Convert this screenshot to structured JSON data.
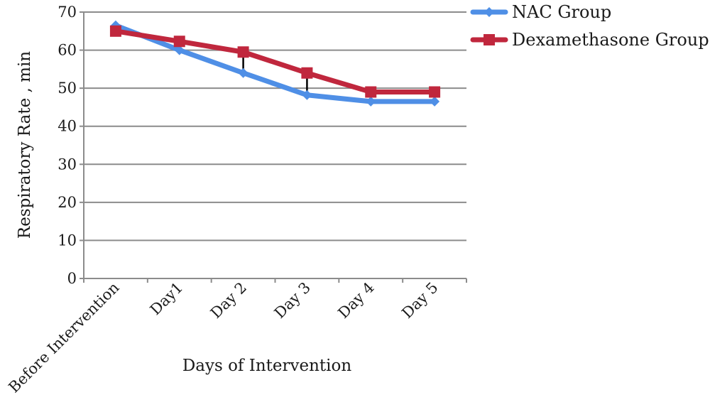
{
  "chart_data": {
    "type": "line",
    "title": "",
    "xlabel": "Days of Intervention",
    "ylabel": "Respiratory Rate , min",
    "categories": [
      "Before Intervention",
      "Day1",
      "Day 2",
      "Day 3",
      "Day 4",
      "Day 5"
    ],
    "ylim": [
      0,
      70
    ],
    "yticks": [
      "0",
      "10",
      "20",
      "30",
      "40",
      "50",
      "60",
      "70"
    ],
    "grid": true,
    "legend_position": "top-right",
    "series": [
      {
        "name": "NAC Group",
        "color": "#4f8fe6",
        "marker": "diamond",
        "values": [
          66.5,
          60,
          54,
          48.2,
          46.5,
          46.5
        ]
      },
      {
        "name": "Dexamethasone Group",
        "color": "#c0273d",
        "marker": "square",
        "values": [
          65,
          62.3,
          59.5,
          54,
          49,
          49
        ]
      }
    ],
    "difference_bars": true
  }
}
